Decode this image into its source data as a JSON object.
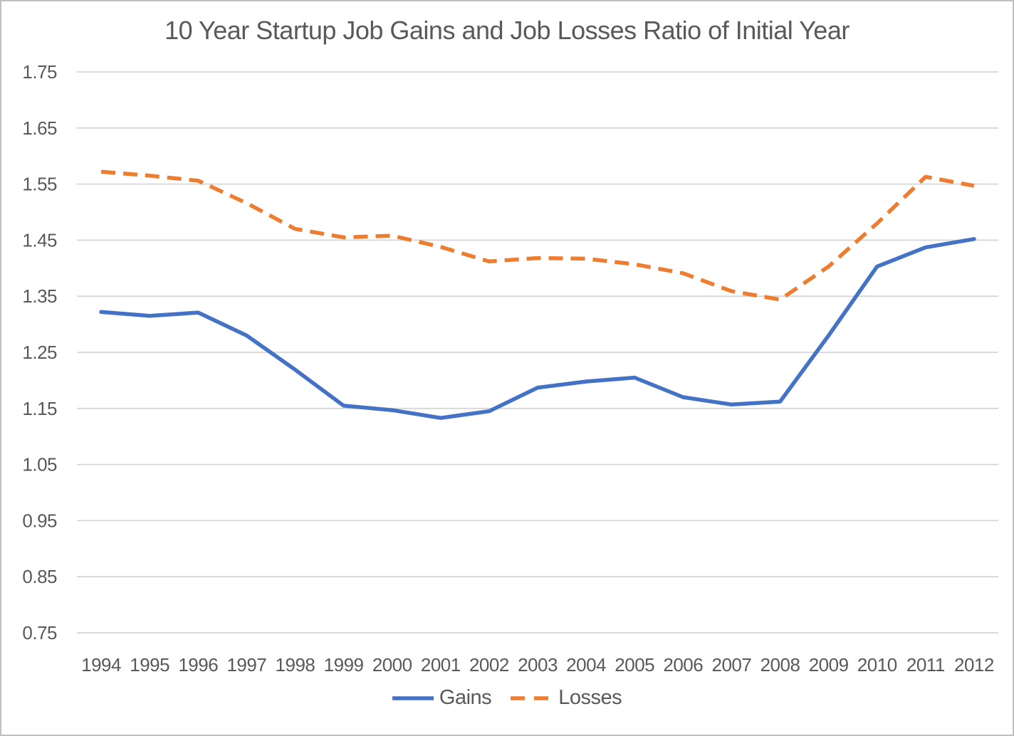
{
  "chart_data": {
    "type": "line",
    "title": "10 Year Startup Job Gains and Job Losses Ratio of Initial Year",
    "x": [
      "1994",
      "1995",
      "1996",
      "1997",
      "1998",
      "1999",
      "2000",
      "2001",
      "2002",
      "2003",
      "2004",
      "2005",
      "2006",
      "2007",
      "2008",
      "2009",
      "2010",
      "2011",
      "2012"
    ],
    "series": [
      {
        "name": "Gains",
        "style": "solid",
        "color": "#4472C4",
        "values": [
          1.322,
          1.315,
          1.321,
          1.28,
          1.219,
          1.155,
          1.147,
          1.133,
          1.145,
          1.187,
          1.198,
          1.205,
          1.17,
          1.157,
          1.162,
          1.28,
          1.403,
          1.437,
          1.452
        ]
      },
      {
        "name": "Losses",
        "style": "dashed",
        "color": "#ED7D31",
        "values": [
          1.572,
          1.565,
          1.556,
          1.516,
          1.47,
          1.455,
          1.458,
          1.438,
          1.412,
          1.418,
          1.417,
          1.407,
          1.391,
          1.359,
          1.344,
          1.403,
          1.48,
          1.563,
          1.547
        ]
      }
    ],
    "ylim": [
      0.75,
      1.75
    ],
    "ytick_labels": [
      "1.75",
      "1.65",
      "1.55",
      "1.45",
      "1.35",
      "1.25",
      "1.15",
      "1.05",
      "0.95",
      "0.85",
      "0.75"
    ],
    "grid": true,
    "legend_position": "bottom",
    "colors": {
      "grid": "#D6D6D6",
      "text": "#595959",
      "border": "#BFBFBF",
      "background": "#FFFFFF"
    }
  }
}
